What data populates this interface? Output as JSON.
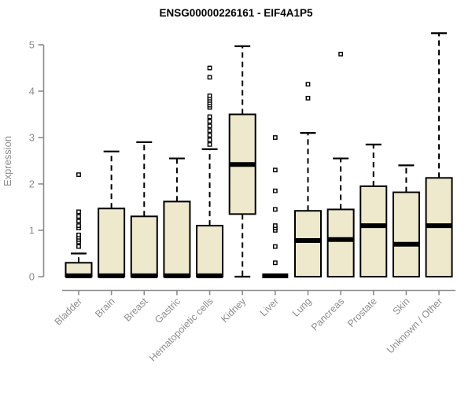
{
  "chart_data": {
    "type": "boxplot",
    "title": "ENSG00000226161 - EIF4A1P5",
    "ylabel": "Expression",
    "xlabel": "",
    "ylim": [
      0,
      5
    ],
    "yticks": [
      0,
      1,
      2,
      3,
      4,
      5
    ],
    "grid": false,
    "legend": false,
    "colors": {
      "box_fill": "#EEE8CD",
      "box_stroke": "#000000",
      "median": "#000000",
      "whisker": "#000000",
      "axis": "#8c8c8c",
      "axis_label": "#8c8c8c",
      "title": "#000000",
      "background": "#ffffff"
    },
    "categories": [
      "Bladder",
      "Brain",
      "Breast",
      "Gastric",
      "Hematopoietic cells",
      "Kidney",
      "Liver",
      "Lung",
      "Pancreas",
      "Prostate",
      "Skin",
      "Unknown / Other"
    ],
    "boxes": [
      {
        "category": "Bladder",
        "whisker_low": 0,
        "q1": 0,
        "median": 0.02,
        "q3": 0.3,
        "whisker_high": 0.5,
        "outliers": [
          0.65,
          0.75,
          0.8,
          0.85,
          0.9,
          1.05,
          1.1,
          1.2,
          1.3,
          1.4,
          2.2
        ]
      },
      {
        "category": "Brain",
        "whisker_low": 0,
        "q1": 0,
        "median": 0.02,
        "q3": 1.47,
        "whisker_high": 2.7,
        "outliers": []
      },
      {
        "category": "Breast",
        "whisker_low": 0,
        "q1": 0,
        "median": 0.02,
        "q3": 1.3,
        "whisker_high": 2.9,
        "outliers": []
      },
      {
        "category": "Gastric",
        "whisker_low": 0,
        "q1": 0,
        "median": 0.02,
        "q3": 1.62,
        "whisker_high": 2.55,
        "outliers": []
      },
      {
        "category": "Hematopoietic cells",
        "whisker_low": 0,
        "q1": 0,
        "median": 0.02,
        "q3": 1.1,
        "whisker_high": 2.75,
        "outliers": [
          2.85,
          2.95,
          3.05,
          3.15,
          3.25,
          3.35,
          3.45,
          3.65,
          3.7,
          3.75,
          3.8,
          3.85,
          3.9,
          4.3,
          4.5
        ]
      },
      {
        "category": "Kidney",
        "whisker_low": 0,
        "q1": 1.35,
        "median": 2.42,
        "q3": 3.5,
        "whisker_high": 4.97,
        "outliers": []
      },
      {
        "category": "Liver",
        "whisker_low": 0,
        "q1": 0,
        "median": 0.02,
        "q3": 0,
        "whisker_high": 0,
        "outliers": [
          0.3,
          0.65,
          1.0,
          1.05,
          1.1,
          1.45,
          1.85,
          2.3,
          3.0
        ]
      },
      {
        "category": "Lung",
        "whisker_low": 0,
        "q1": 0,
        "median": 0.78,
        "q3": 1.42,
        "whisker_high": 3.1,
        "outliers": [
          3.85,
          4.15
        ]
      },
      {
        "category": "Pancreas",
        "whisker_low": 0,
        "q1": 0,
        "median": 0.8,
        "q3": 1.45,
        "whisker_high": 2.55,
        "outliers": [
          4.8
        ]
      },
      {
        "category": "Prostate",
        "whisker_low": 0,
        "q1": 0,
        "median": 1.1,
        "q3": 1.95,
        "whisker_high": 2.85,
        "outliers": []
      },
      {
        "category": "Skin",
        "whisker_low": 0,
        "q1": 0,
        "median": 0.7,
        "q3": 1.82,
        "whisker_high": 2.4,
        "outliers": []
      },
      {
        "category": "Unknown / Other",
        "whisker_low": 0,
        "q1": 0,
        "median": 1.1,
        "q3": 2.13,
        "whisker_high": 5.25,
        "outliers": []
      }
    ]
  }
}
